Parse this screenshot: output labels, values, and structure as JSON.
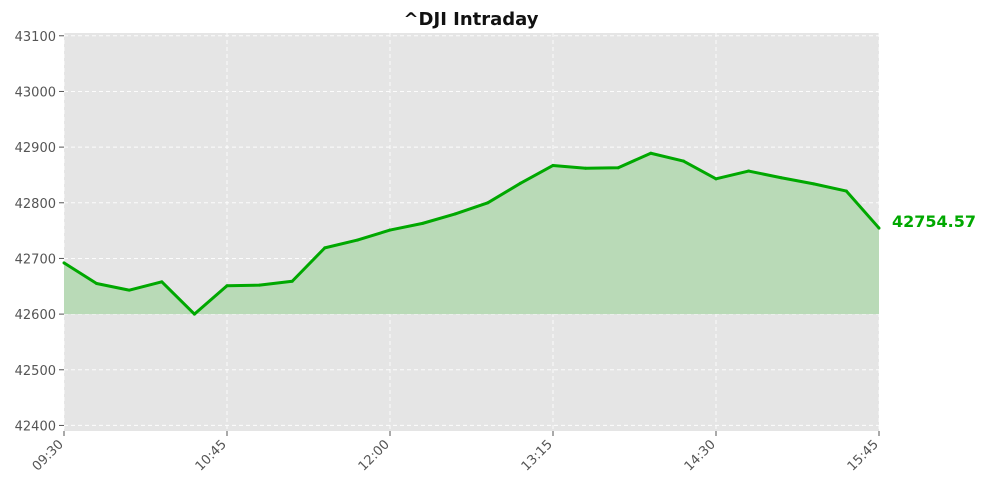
{
  "chart_data": {
    "type": "area",
    "title": "^DJI Intraday",
    "xlabel": "",
    "ylabel": "",
    "x_ticks": [
      "09:30",
      "10:45",
      "12:00",
      "13:15",
      "14:30",
      "15:45"
    ],
    "x": [
      "09:30",
      "09:45",
      "10:00",
      "10:15",
      "10:30",
      "10:45",
      "11:00",
      "11:15",
      "11:30",
      "11:45",
      "12:00",
      "12:15",
      "12:30",
      "12:45",
      "13:00",
      "13:15",
      "13:30",
      "13:45",
      "14:00",
      "14:15",
      "14:30",
      "14:45",
      "15:00",
      "15:15",
      "15:30",
      "15:45"
    ],
    "values": [
      42692,
      42655,
      42643,
      42658,
      42600,
      42651,
      42652,
      42659,
      42719,
      42733,
      42751,
      42763,
      42780,
      42800,
      42835,
      42867,
      42862,
      42863,
      42889,
      42875,
      42843,
      42857,
      42845,
      42834,
      42821,
      42754.57
    ],
    "fill_baseline": 42600,
    "ylim": [
      42390,
      43105
    ],
    "y_ticks": [
      42400,
      42500,
      42600,
      42700,
      42800,
      42900,
      43000,
      43100
    ],
    "grid": true,
    "last_value_label": "42754.57",
    "colors": {
      "line": "#00a800",
      "fill": "#b9dab7",
      "plot_background": "#e5e5e5",
      "last_label": "#00a800"
    }
  }
}
